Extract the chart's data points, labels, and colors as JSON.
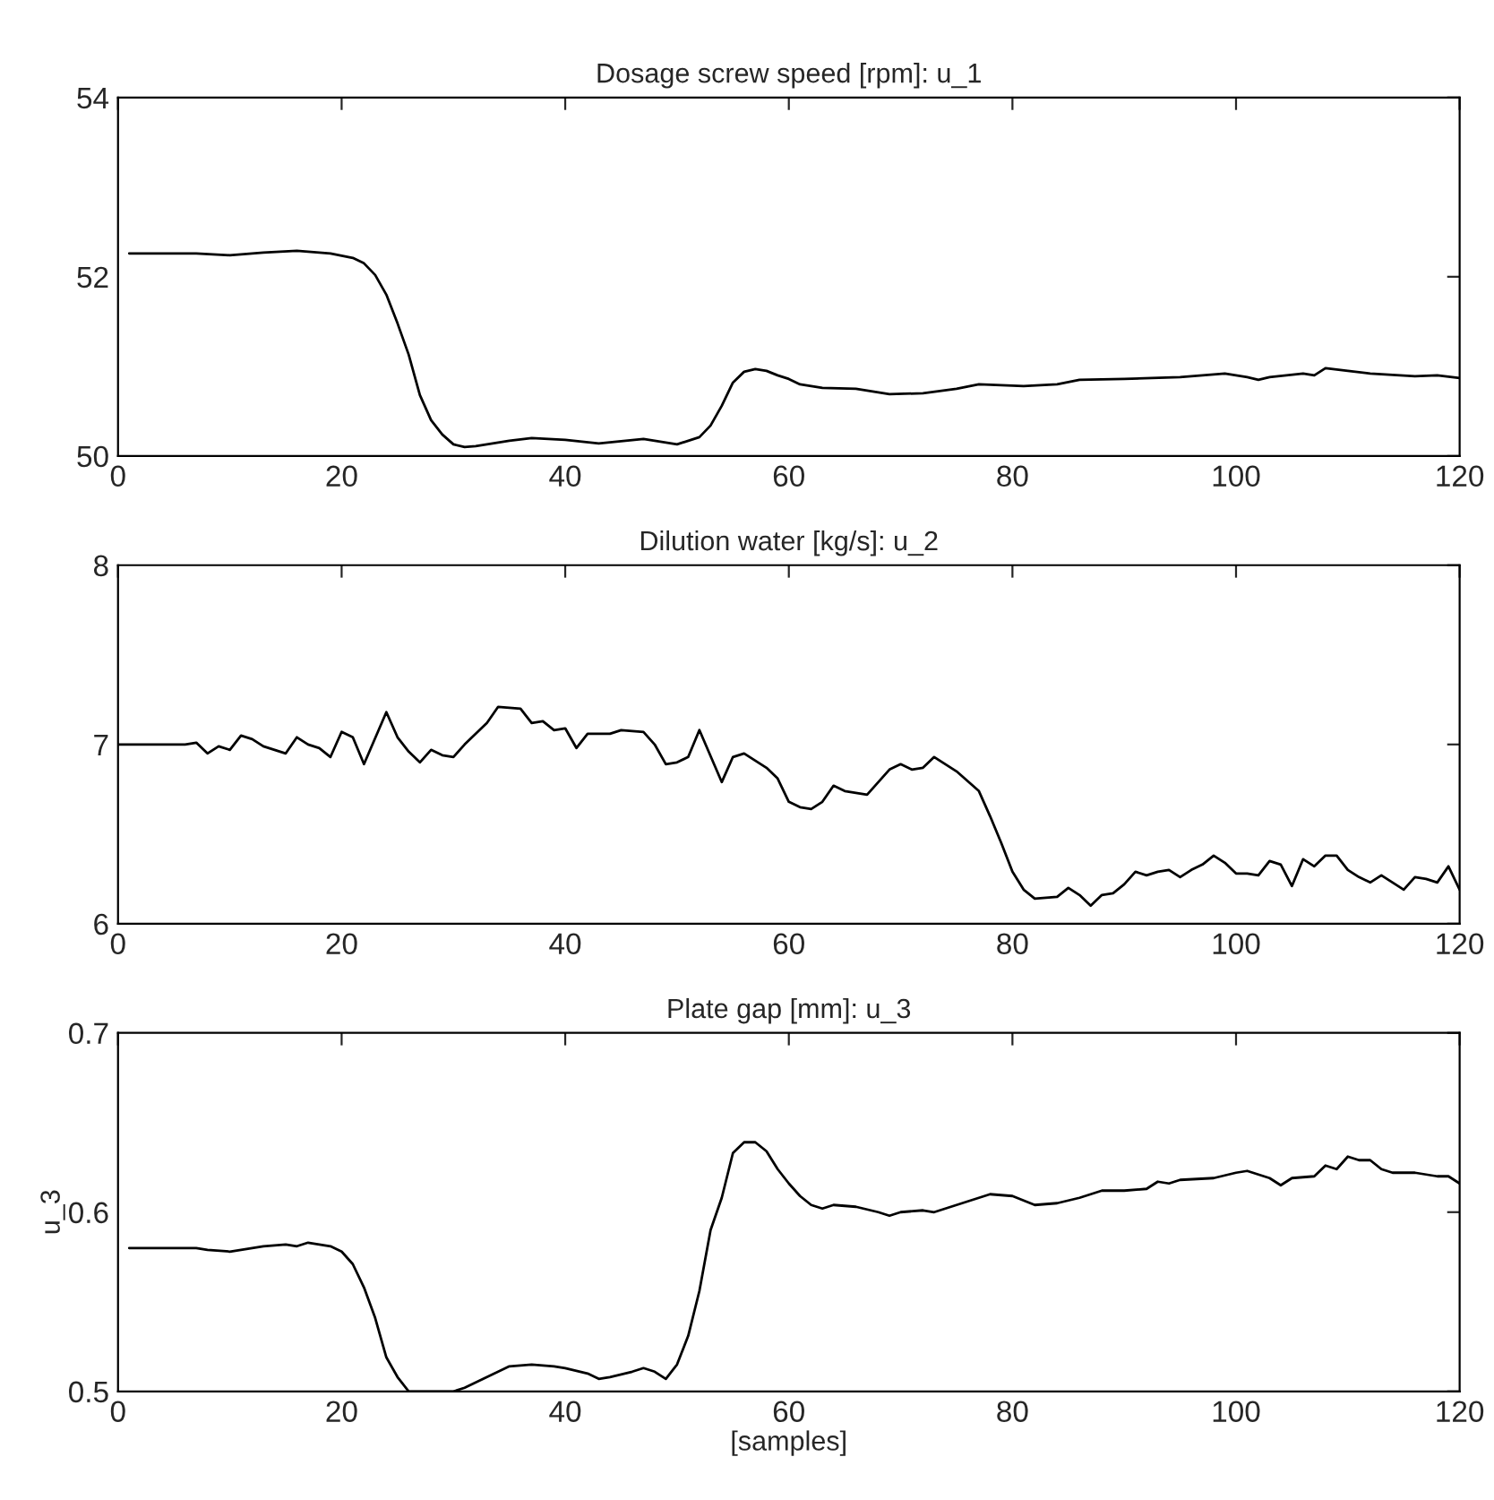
{
  "chart_data": [
    {
      "type": "line",
      "title": "Dosage screw speed [rpm]: u_1",
      "xlim": [
        0,
        120
      ],
      "xticks": [
        0,
        20,
        40,
        60,
        80,
        100,
        120
      ],
      "ylim": [
        50,
        54
      ],
      "yticks": [
        50,
        52,
        54
      ],
      "grid": false,
      "legend": false,
      "x": [
        1,
        7,
        10,
        13,
        16,
        19,
        21,
        22,
        23,
        24,
        25,
        26,
        27,
        28,
        29,
        30,
        31,
        32,
        35,
        37,
        40,
        43,
        47,
        50,
        52,
        53,
        54,
        55,
        56,
        57,
        58,
        59,
        60,
        61,
        63,
        66,
        69,
        72,
        75,
        77,
        81,
        84,
        86,
        90,
        95,
        99,
        101,
        102,
        103,
        106,
        107,
        108,
        110,
        112,
        116,
        118,
        120
      ],
      "series": [
        {
          "color": "#000000",
          "values": [
            52.26,
            52.26,
            52.24,
            52.27,
            52.29,
            52.26,
            52.21,
            52.15,
            52.02,
            51.8,
            51.48,
            51.13,
            50.68,
            50.4,
            50.24,
            50.13,
            50.1,
            50.11,
            50.17,
            50.2,
            50.18,
            50.14,
            50.19,
            50.13,
            50.21,
            50.34,
            50.56,
            50.82,
            50.94,
            50.97,
            50.95,
            50.9,
            50.86,
            50.8,
            50.76,
            50.75,
            50.69,
            50.7,
            50.75,
            50.8,
            50.78,
            50.8,
            50.85,
            50.86,
            50.88,
            50.92,
            50.88,
            50.85,
            50.88,
            50.92,
            50.9,
            50.98,
            50.95,
            50.92,
            50.89,
            50.9,
            50.87
          ]
        }
      ]
    },
    {
      "type": "line",
      "title": "Dilution water [kg/s]: u_2",
      "xlim": [
        0,
        120
      ],
      "xticks": [
        0,
        20,
        40,
        60,
        80,
        100,
        120
      ],
      "ylim": [
        6,
        8
      ],
      "yticks": [
        6,
        7,
        8
      ],
      "grid": false,
      "legend": false,
      "x": [
        0,
        6,
        7,
        8,
        9,
        10,
        11,
        12,
        13,
        14,
        15,
        16,
        17,
        18,
        19,
        20,
        21,
        22,
        24,
        25,
        26,
        27,
        28,
        29,
        30,
        31,
        33,
        34,
        36,
        37,
        38,
        39,
        40,
        41,
        42,
        44,
        45,
        47,
        48,
        49,
        50,
        51,
        52,
        54,
        55,
        56,
        57,
        58,
        59,
        60,
        61,
        62,
        63,
        64,
        65,
        67,
        69,
        70,
        71,
        72,
        73,
        74,
        75,
        77,
        78,
        79,
        80,
        81,
        82,
        84,
        85,
        86,
        87,
        88,
        89,
        90,
        91,
        92,
        93,
        94,
        95,
        96,
        97,
        98,
        99,
        100,
        101,
        102,
        103,
        104,
        105,
        106,
        107,
        108,
        109,
        110,
        111,
        112,
        113,
        114,
        115,
        116,
        117,
        118,
        119,
        120
      ],
      "series": [
        {
          "color": "#000000",
          "values": [
            7.0,
            7.0,
            7.01,
            6.95,
            6.99,
            6.97,
            7.05,
            7.03,
            6.99,
            6.97,
            6.95,
            7.04,
            7.0,
            6.98,
            6.93,
            7.07,
            7.04,
            6.89,
            7.18,
            7.04,
            6.96,
            6.9,
            6.97,
            6.94,
            6.93,
            7.0,
            7.12,
            7.21,
            7.2,
            7.12,
            7.13,
            7.08,
            7.09,
            6.98,
            7.06,
            7.06,
            7.08,
            7.07,
            7.0,
            6.89,
            6.9,
            6.93,
            7.08,
            6.79,
            6.93,
            6.95,
            6.91,
            6.87,
            6.81,
            6.68,
            6.65,
            6.64,
            6.68,
            6.77,
            6.74,
            6.72,
            6.86,
            6.89,
            6.86,
            6.87,
            6.93,
            6.89,
            6.85,
            6.74,
            6.6,
            6.45,
            6.29,
            6.19,
            6.14,
            6.15,
            6.2,
            6.16,
            6.1,
            6.16,
            6.17,
            6.22,
            6.29,
            6.27,
            6.29,
            6.3,
            6.26,
            6.3,
            6.33,
            6.38,
            6.34,
            6.28,
            6.28,
            6.27,
            6.35,
            6.33,
            6.21,
            6.36,
            6.32,
            6.38,
            6.38,
            6.3,
            6.26,
            6.23,
            6.27,
            6.23,
            6.19,
            6.26,
            6.25,
            6.23,
            6.32,
            6.19
          ]
        }
      ]
    },
    {
      "type": "line",
      "title": "Plate gap [mm]: u_3",
      "xlabel": "[samples]",
      "ylabel": "u_3",
      "xlim": [
        0,
        120
      ],
      "xticks": [
        0,
        20,
        40,
        60,
        80,
        100,
        120
      ],
      "ylim": [
        0.5,
        0.7
      ],
      "yticks": [
        0.5,
        0.6,
        0.7
      ],
      "grid": false,
      "legend": false,
      "x": [
        1,
        7,
        8,
        10,
        13,
        15,
        16,
        17,
        19,
        20,
        21,
        22,
        23,
        24,
        25,
        26,
        30,
        31,
        33,
        35,
        37,
        39,
        40,
        42,
        43,
        44,
        46,
        47,
        48,
        49,
        50,
        51,
        52,
        53,
        54,
        55,
        56,
        57,
        58,
        59,
        60,
        61,
        62,
        63,
        64,
        66,
        68,
        69,
        70,
        72,
        73,
        75,
        76,
        78,
        80,
        82,
        84,
        86,
        88,
        90,
        92,
        93,
        94,
        95,
        98,
        100,
        101,
        103,
        104,
        105,
        107,
        108,
        109,
        110,
        111,
        112,
        113,
        114,
        116,
        118,
        119,
        120
      ],
      "series": [
        {
          "color": "#000000",
          "values": [
            0.58,
            0.58,
            0.579,
            0.578,
            0.581,
            0.582,
            0.581,
            0.583,
            0.581,
            0.578,
            0.571,
            0.558,
            0.541,
            0.519,
            0.508,
            0.5,
            0.5,
            0.502,
            0.508,
            0.514,
            0.515,
            0.514,
            0.513,
            0.51,
            0.507,
            0.508,
            0.511,
            0.513,
            0.511,
            0.507,
            0.515,
            0.531,
            0.556,
            0.59,
            0.608,
            0.633,
            0.639,
            0.639,
            0.634,
            0.624,
            0.616,
            0.609,
            0.604,
            0.602,
            0.604,
            0.603,
            0.6,
            0.598,
            0.6,
            0.601,
            0.6,
            0.604,
            0.606,
            0.61,
            0.609,
            0.604,
            0.605,
            0.608,
            0.612,
            0.612,
            0.613,
            0.617,
            0.616,
            0.618,
            0.619,
            0.622,
            0.623,
            0.619,
            0.615,
            0.619,
            0.62,
            0.626,
            0.624,
            0.631,
            0.629,
            0.629,
            0.624,
            0.622,
            0.622,
            0.62,
            0.62,
            0.616
          ]
        }
      ]
    }
  ]
}
